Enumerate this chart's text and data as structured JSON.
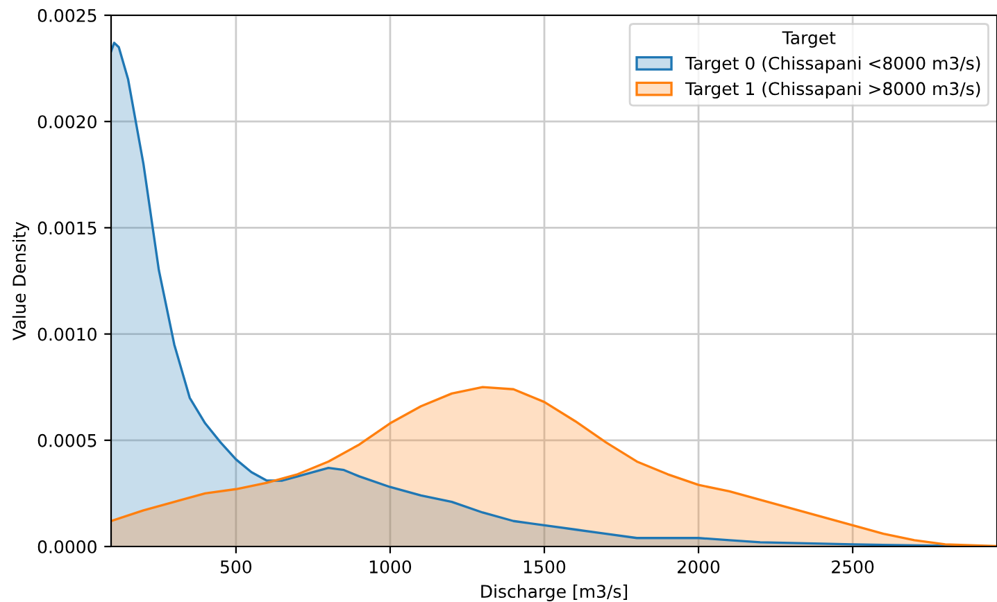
{
  "chart_data": {
    "type": "area",
    "xlabel": "Discharge [m3/s]",
    "ylabel": "Value Density",
    "legend_title": "Target",
    "legend": "top right",
    "grid": true,
    "xlim": [
      95,
      2968
    ],
    "xticks": [
      500,
      1000,
      1500,
      2000,
      2500
    ],
    "ylim": [
      0,
      0.0025
    ],
    "yticks": [
      {
        "value": 0,
        "label": "0.0000"
      },
      {
        "value": 0.0005,
        "label": "0.0005"
      },
      {
        "value": 0.001,
        "label": "0.0010"
      },
      {
        "value": 0.0015,
        "label": "0.0015"
      },
      {
        "value": 0.002,
        "label": "0.0020"
      },
      {
        "value": 0.0025,
        "label": "0.0025"
      }
    ],
    "series": [
      {
        "name": "Target 0 (Chissapani <8000 m3/s)",
        "color": "#1f77b4",
        "x": [
          95,
          105,
          120,
          150,
          200,
          250,
          300,
          350,
          400,
          450,
          500,
          550,
          600,
          650,
          700,
          800,
          850,
          900,
          1000,
          1100,
          1200,
          1300,
          1400,
          1500,
          1600,
          1700,
          1800,
          2000,
          2100,
          2200,
          2500,
          2968
        ],
        "values": [
          0.00233,
          0.00237,
          0.00235,
          0.0022,
          0.0018,
          0.0013,
          0.00095,
          0.0007,
          0.00058,
          0.00049,
          0.00041,
          0.00035,
          0.00031,
          0.00031,
          0.00033,
          0.00037,
          0.00036,
          0.00033,
          0.00028,
          0.00024,
          0.00021,
          0.00016,
          0.00012,
          0.0001,
          8e-05,
          6e-05,
          4e-05,
          4e-05,
          3e-05,
          2e-05,
          1e-05,
          0
        ]
      },
      {
        "name": "Target 1 (Chissapani >8000 m3/s)",
        "color": "#ff7f0e",
        "x": [
          95,
          200,
          300,
          400,
          500,
          600,
          700,
          800,
          900,
          1000,
          1100,
          1200,
          1300,
          1400,
          1500,
          1600,
          1700,
          1800,
          1900,
          2000,
          2100,
          2200,
          2300,
          2400,
          2500,
          2600,
          2700,
          2800,
          2968
        ],
        "values": [
          0.00012,
          0.00017,
          0.00021,
          0.00025,
          0.00027,
          0.0003,
          0.00034,
          0.0004,
          0.00048,
          0.00058,
          0.00066,
          0.00072,
          0.00075,
          0.00074,
          0.00068,
          0.00059,
          0.00049,
          0.0004,
          0.00034,
          0.00029,
          0.00026,
          0.00022,
          0.00018,
          0.00014,
          0.0001,
          6e-05,
          3e-05,
          1e-05,
          2e-06
        ]
      }
    ]
  }
}
